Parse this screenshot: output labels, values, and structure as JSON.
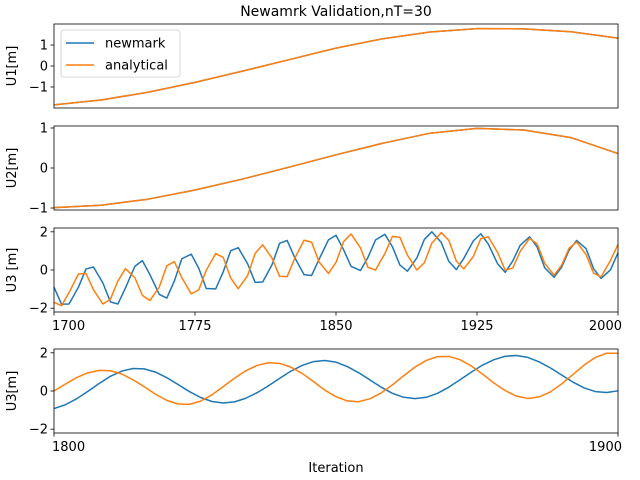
{
  "title": "Newamrk Validation,nT=30",
  "colors": {
    "newmark": "#1f77b4",
    "analytical": "#ff7f0e"
  },
  "chart_data": [
    {
      "type": "line",
      "ylabel": "U1[m]",
      "xlim": [
        1700,
        2000
      ],
      "ylim": [
        -2.0,
        2.0
      ],
      "yticks": [
        -1,
        0,
        1
      ],
      "show_xticks": false,
      "legend": {
        "placement": "top-left",
        "entries": [
          "newmark",
          "analytical"
        ]
      },
      "series": [
        {
          "name": "newmark",
          "key": "newmark",
          "x": [
            1700,
            1725,
            1750,
            1775,
            1800,
            1825,
            1850,
            1875,
            1900,
            1925,
            1950,
            1975,
            2000
          ],
          "y": [
            -1.85,
            -1.62,
            -1.25,
            -0.78,
            -0.25,
            0.3,
            0.85,
            1.3,
            1.62,
            1.78,
            1.77,
            1.63,
            1.33
          ]
        },
        {
          "name": "analytical",
          "key": "analytical",
          "x": [
            1700,
            1725,
            1750,
            1775,
            1800,
            1825,
            1850,
            1875,
            1900,
            1925,
            1950,
            1975,
            2000
          ],
          "y": [
            -1.85,
            -1.62,
            -1.25,
            -0.78,
            -0.25,
            0.3,
            0.85,
            1.3,
            1.62,
            1.78,
            1.77,
            1.63,
            1.33
          ]
        }
      ]
    },
    {
      "type": "line",
      "ylabel": "U2[m]",
      "xlim": [
        1700,
        2000
      ],
      "ylim": [
        -1.05,
        1.05
      ],
      "yticks": [
        -1,
        0,
        1
      ],
      "show_xticks": false,
      "series": [
        {
          "name": "newmark",
          "key": "newmark",
          "x": [
            1700,
            1725,
            1750,
            1775,
            1800,
            1825,
            1850,
            1875,
            1900,
            1925,
            1950,
            1975,
            2000
          ],
          "y": [
            -0.99,
            -0.93,
            -0.78,
            -0.55,
            -0.28,
            0.02,
            0.33,
            0.62,
            0.87,
            0.99,
            0.95,
            0.76,
            0.36
          ]
        },
        {
          "name": "analytical",
          "key": "analytical",
          "x": [
            1700,
            1725,
            1750,
            1775,
            1800,
            1825,
            1850,
            1875,
            1900,
            1925,
            1950,
            1975,
            2000
          ],
          "y": [
            -0.99,
            -0.93,
            -0.78,
            -0.55,
            -0.28,
            0.02,
            0.33,
            0.62,
            0.87,
            0.99,
            0.95,
            0.76,
            0.36
          ]
        }
      ]
    },
    {
      "type": "line",
      "ylabel": "U3 [m]",
      "xlim": [
        1700,
        2000
      ],
      "ylim": [
        -2.2,
        2.2
      ],
      "yticks": [
        -2,
        0,
        2
      ],
      "xticks": [
        1700,
        1775,
        1850,
        1925,
        2000
      ],
      "show_xticks": true,
      "series": [
        {
          "name": "newmark",
          "key": "newmark",
          "x": [
            1700,
            1704,
            1708,
            1713,
            1717,
            1721,
            1726,
            1730,
            1734,
            1738,
            1743,
            1747,
            1751,
            1756,
            1760,
            1764,
            1768,
            1773,
            1777,
            1781,
            1786,
            1790,
            1794,
            1798,
            1803,
            1807,
            1811,
            1816,
            1820,
            1824,
            1828,
            1833,
            1837,
            1841,
            1846,
            1850,
            1854,
            1858,
            1863,
            1867,
            1871,
            1876,
            1880,
            1884,
            1888,
            1893,
            1897,
            1901,
            1906,
            1910,
            1914,
            1918,
            1923,
            1927,
            1931,
            1936,
            1940,
            1944,
            1948,
            1953,
            1957,
            1961,
            1966,
            1970,
            1974,
            1978,
            1983,
            1987,
            1991,
            1996,
            2000
          ],
          "y": [
            -0.9,
            -1.79,
            -1.78,
            -0.9,
            0.05,
            0.16,
            -0.68,
            -1.67,
            -1.78,
            -0.94,
            0.19,
            0.49,
            -0.24,
            -1.28,
            -1.47,
            -0.58,
            0.59,
            0.83,
            0.09,
            -0.97,
            -0.99,
            -0.1,
            1.01,
            1.17,
            0.32,
            -0.65,
            -0.63,
            0.28,
            1.4,
            1.55,
            0.66,
            -0.24,
            -0.29,
            0.56,
            1.58,
            1.82,
            1.07,
            0.19,
            -0.03,
            0.66,
            1.57,
            1.87,
            1.22,
            0.26,
            -0.06,
            0.63,
            1.6,
            2.0,
            1.44,
            0.45,
            0.02,
            0.61,
            1.52,
            1.9,
            1.36,
            0.32,
            -0.12,
            0.47,
            1.3,
            1.74,
            1.2,
            0.12,
            -0.38,
            0.15,
            1.04,
            1.55,
            1.12,
            0.07,
            -0.44,
            0.01,
            0.9
          ]
        },
        {
          "name": "analytical",
          "key": "analytical",
          "x": [
            1700,
            1704,
            1708,
            1713,
            1717,
            1721,
            1726,
            1730,
            1734,
            1738,
            1743,
            1747,
            1751,
            1756,
            1760,
            1764,
            1768,
            1773,
            1777,
            1781,
            1786,
            1790,
            1794,
            1798,
            1803,
            1807,
            1811,
            1816,
            1820,
            1824,
            1828,
            1833,
            1837,
            1841,
            1846,
            1850,
            1854,
            1858,
            1863,
            1867,
            1871,
            1876,
            1880,
            1884,
            1888,
            1893,
            1897,
            1901,
            1906,
            1910,
            1914,
            1918,
            1923,
            1927,
            1931,
            1936,
            1940,
            1944,
            1948,
            1953,
            1957,
            1961,
            1966,
            1970,
            1974,
            1978,
            1983,
            1987,
            1991,
            1996,
            2000
          ],
          "y": [
            -1.69,
            -1.87,
            -1.18,
            -0.21,
            -0.18,
            -1.04,
            -1.78,
            -1.53,
            -0.58,
            0.07,
            -0.4,
            -1.33,
            -1.6,
            -0.89,
            0.22,
            0.44,
            -0.4,
            -1.25,
            -1.04,
            -0.01,
            0.86,
            0.66,
            -0.42,
            -0.98,
            -0.29,
            0.87,
            1.32,
            0.62,
            -0.33,
            -0.35,
            0.6,
            1.56,
            1.46,
            0.42,
            -0.18,
            0.4,
            1.48,
            1.89,
            1.16,
            0.14,
            0.0,
            0.86,
            1.76,
            1.71,
            0.78,
            0.0,
            0.38,
            1.41,
            1.96,
            1.55,
            0.47,
            0.06,
            0.7,
            1.64,
            1.74,
            0.91,
            -0.01,
            0.1,
            0.98,
            1.66,
            1.37,
            0.35,
            -0.27,
            0.25,
            1.14,
            1.47,
            0.81,
            -0.16,
            -0.36,
            0.5,
            1.34
          ]
        }
      ]
    },
    {
      "type": "line",
      "ylabel": "U3[m]",
      "xlabel": "Iteration",
      "xlim": [
        1800,
        1900
      ],
      "ylim": [
        -2.2,
        2.2
      ],
      "yticks": [
        -2,
        0,
        2
      ],
      "xticks": [
        1800,
        1900
      ],
      "show_xticks": true,
      "series": [
        {
          "name": "newmark",
          "key": "newmark",
          "x": [
            1800,
            1802,
            1804,
            1806,
            1808,
            1810,
            1812,
            1814,
            1816,
            1818,
            1820,
            1822,
            1824,
            1826,
            1828,
            1830,
            1832,
            1834,
            1836,
            1838,
            1840,
            1842,
            1844,
            1846,
            1848,
            1850,
            1852,
            1854,
            1856,
            1858,
            1860,
            1862,
            1864,
            1866,
            1868,
            1870,
            1872,
            1874,
            1876,
            1878,
            1880,
            1882,
            1884,
            1886,
            1888,
            1890,
            1892,
            1894,
            1896,
            1898,
            1900
          ],
          "y": [
            -0.92,
            -0.72,
            -0.41,
            -0.02,
            0.39,
            0.77,
            1.04,
            1.18,
            1.16,
            0.99,
            0.7,
            0.34,
            -0.03,
            -0.34,
            -0.55,
            -0.63,
            -0.57,
            -0.38,
            -0.09,
            0.27,
            0.66,
            1.04,
            1.34,
            1.54,
            1.6,
            1.51,
            1.28,
            0.96,
            0.58,
            0.2,
            -0.12,
            -0.33,
            -0.4,
            -0.33,
            -0.12,
            0.2,
            0.59,
            0.99,
            1.36,
            1.64,
            1.82,
            1.86,
            1.76,
            1.53,
            1.21,
            0.84,
            0.47,
            0.16,
            -0.03,
            -0.08,
            0.01
          ]
        },
        {
          "name": "analytical",
          "key": "analytical",
          "x": [
            1800,
            1802,
            1804,
            1806,
            1808,
            1810,
            1812,
            1814,
            1816,
            1818,
            1820,
            1822,
            1824,
            1826,
            1828,
            1830,
            1832,
            1834,
            1836,
            1838,
            1840,
            1842,
            1844,
            1846,
            1848,
            1850,
            1852,
            1854,
            1856,
            1858,
            1860,
            1862,
            1864,
            1866,
            1868,
            1870,
            1872,
            1874,
            1876,
            1878,
            1880,
            1882,
            1884,
            1886,
            1888,
            1890,
            1892,
            1894,
            1896,
            1898,
            1900
          ],
          "y": [
            0.0,
            0.36,
            0.7,
            0.95,
            1.08,
            1.06,
            0.89,
            0.59,
            0.22,
            -0.17,
            -0.49,
            -0.68,
            -0.7,
            -0.53,
            -0.2,
            0.23,
            0.67,
            1.06,
            1.34,
            1.48,
            1.45,
            1.25,
            0.92,
            0.49,
            0.05,
            -0.3,
            -0.52,
            -0.56,
            -0.41,
            -0.1,
            0.32,
            0.8,
            1.25,
            1.6,
            1.8,
            1.81,
            1.64,
            1.31,
            0.88,
            0.42,
            0.02,
            -0.27,
            -0.39,
            -0.31,
            -0.05,
            0.37,
            0.86,
            1.36,
            1.76,
            1.98,
            1.98
          ]
        }
      ]
    }
  ]
}
